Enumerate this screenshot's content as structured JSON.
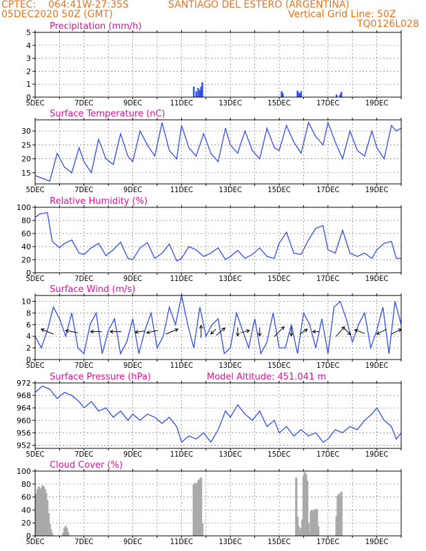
{
  "header": {
    "line1_left": "CPTEC:",
    "line1_coords": "064:41W-27:35S",
    "line1_station": "SANTIAGO DEL ESTERO (ARGENTINA)",
    "line2_left": "05DEC2020 50Z (GMT)",
    "line2_right": "Vertical Grid Line: 50Z",
    "line3_right": "TQ0126L028"
  },
  "colors": {
    "header": "#e8731c",
    "title": "#e0109a",
    "line": "#2f4cf0",
    "bar": "#2f4cf0",
    "cloud": "#a9a9a9"
  },
  "chart_data": [
    {
      "type": "bar",
      "title": "Precipitation (mm/h)",
      "ylim": [
        0,
        5
      ],
      "yticks": [
        0,
        1,
        2,
        3,
        4,
        5
      ],
      "xticks": [
        "5DEC",
        "7DEC",
        "9DEC",
        "11DEC",
        "13DEC",
        "15DEC",
        "17DEC",
        "19DEC"
      ],
      "x_day_range": [
        5,
        20
      ],
      "x": [
        5.5,
        11.5,
        11.6,
        11.68,
        11.75,
        11.8,
        11.85,
        15.1,
        15.15,
        15.75,
        15.8,
        15.85,
        15.9,
        17.35,
        17.5,
        17.55
      ],
      "values": [
        0.02,
        0.8,
        0.45,
        0.7,
        0.55,
        0.8,
        1.15,
        0.45,
        0.3,
        0.5,
        0.35,
        0.3,
        0.45,
        0.2,
        0.2,
        0.4
      ]
    },
    {
      "type": "line",
      "title": "Surface Temperature (nC)",
      "ylim": [
        11,
        34
      ],
      "yticks": [
        15,
        20,
        25,
        30
      ],
      "xticks": [
        "5DEC",
        "7DEC",
        "9DEC",
        "11DEC",
        "13DEC",
        "15DEC",
        "17DEC",
        "19DEC"
      ],
      "x_day_range": [
        5,
        20
      ],
      "x": [
        5.0,
        5.3,
        5.6,
        5.9,
        6.2,
        6.5,
        6.8,
        7.0,
        7.3,
        7.6,
        7.9,
        8.2,
        8.5,
        8.8,
        9.0,
        9.3,
        9.6,
        9.9,
        10.2,
        10.5,
        10.8,
        11.0,
        11.3,
        11.6,
        11.9,
        12.2,
        12.5,
        12.8,
        13.0,
        13.3,
        13.6,
        13.9,
        14.2,
        14.5,
        14.8,
        15.0,
        15.3,
        15.6,
        15.9,
        16.2,
        16.5,
        16.8,
        17.0,
        17.3,
        17.6,
        17.9,
        18.2,
        18.5,
        18.8,
        19.0,
        19.3,
        19.6,
        19.8,
        20.0
      ],
      "values": [
        14,
        13,
        12,
        22,
        17,
        15,
        24,
        19,
        15,
        27,
        20,
        18,
        29,
        21,
        19,
        30,
        25,
        21,
        33,
        23,
        20,
        32,
        24,
        21,
        29,
        22,
        19,
        31,
        25,
        22,
        30,
        23,
        20,
        31,
        24,
        23,
        32,
        26,
        22,
        33,
        28,
        25,
        33,
        26,
        20,
        30,
        23,
        21,
        30,
        24,
        20,
        32,
        30,
        31
      ]
    },
    {
      "type": "line",
      "title": "Relative Humidity (%)",
      "ylim": [
        0,
        100
      ],
      "yticks": [
        0,
        20,
        40,
        60,
        80,
        100
      ],
      "xticks": [
        "5DEC",
        "7DEC",
        "9DEC",
        "11DEC",
        "13DEC",
        "15DEC",
        "17DEC",
        "19DEC"
      ],
      "x_day_range": [
        5,
        20
      ],
      "x": [
        5.0,
        5.2,
        5.5,
        5.7,
        6.0,
        6.2,
        6.5,
        6.8,
        7.0,
        7.3,
        7.6,
        7.9,
        8.2,
        8.5,
        8.8,
        9.0,
        9.3,
        9.6,
        9.9,
        10.2,
        10.5,
        10.8,
        11.0,
        11.3,
        11.6,
        11.9,
        12.2,
        12.5,
        12.8,
        13.0,
        13.3,
        13.6,
        13.9,
        14.2,
        14.5,
        14.8,
        15.0,
        15.3,
        15.6,
        15.9,
        16.2,
        16.5,
        16.8,
        17.0,
        17.3,
        17.6,
        17.9,
        18.2,
        18.5,
        18.8,
        19.0,
        19.3,
        19.6,
        19.8,
        20.0
      ],
      "values": [
        85,
        90,
        92,
        48,
        38,
        45,
        50,
        30,
        28,
        38,
        45,
        26,
        35,
        47,
        22,
        20,
        38,
        46,
        22,
        30,
        44,
        18,
        22,
        40,
        35,
        25,
        30,
        38,
        20,
        25,
        34,
        22,
        28,
        38,
        25,
        22,
        45,
        62,
        30,
        28,
        50,
        68,
        72,
        35,
        30,
        65,
        30,
        25,
        30,
        22,
        35,
        45,
        48,
        22,
        22
      ]
    },
    {
      "type": "line",
      "title": "Surface Wind (m/s)",
      "ylim": [
        0,
        11
      ],
      "yticks": [
        0,
        2,
        4,
        6,
        8,
        10
      ],
      "xticks": [
        "5DEC",
        "7DEC",
        "9DEC",
        "11DEC",
        "13DEC",
        "15DEC",
        "17DEC",
        "19DEC"
      ],
      "x_day_range": [
        5,
        20
      ],
      "x": [
        5.0,
        5.25,
        5.5,
        5.75,
        6.0,
        6.25,
        6.5,
        6.75,
        7.0,
        7.25,
        7.5,
        7.75,
        8.0,
        8.25,
        8.5,
        8.75,
        9.0,
        9.25,
        9.5,
        9.75,
        10.0,
        10.25,
        10.5,
        10.75,
        11.0,
        11.25,
        11.5,
        11.75,
        12.0,
        12.25,
        12.5,
        12.75,
        13.0,
        13.25,
        13.5,
        13.75,
        14.0,
        14.25,
        14.5,
        14.75,
        15.0,
        15.25,
        15.5,
        15.75,
        16.0,
        16.25,
        16.5,
        16.75,
        17.0,
        17.25,
        17.5,
        17.75,
        18.0,
        18.25,
        18.5,
        18.75,
        19.0,
        19.25,
        19.5,
        19.75,
        20.0
      ],
      "values": [
        4,
        2,
        5,
        9,
        7,
        4,
        8,
        2,
        1,
        6,
        8,
        1,
        5,
        7,
        1,
        3,
        7,
        1,
        5,
        8,
        2,
        4,
        9,
        6,
        11,
        6,
        2,
        9,
        4,
        6,
        7,
        1,
        2,
        8,
        5,
        2,
        7,
        1,
        3,
        8,
        2,
        2,
        6,
        1,
        8,
        6,
        2,
        7,
        1,
        9,
        10,
        7,
        3,
        6,
        8,
        2,
        5,
        9,
        1,
        10,
        6
      ],
      "arrows_unit": "direction vectors",
      "arrows": [
        {
          "x": 5.5,
          "u": -1,
          "v": 0.4
        },
        {
          "x": 6.5,
          "u": -1,
          "v": 0.2
        },
        {
          "x": 7.5,
          "u": -0.9,
          "v": 0.0
        },
        {
          "x": 8.3,
          "u": -0.9,
          "v": 0.0
        },
        {
          "x": 9.3,
          "u": -0.8,
          "v": -0.1
        },
        {
          "x": 9.8,
          "u": -0.9,
          "v": -0.2
        },
        {
          "x": 10.6,
          "u": 1,
          "v": 0.4
        },
        {
          "x": 11.8,
          "u": 0.0,
          "v": 1.0
        },
        {
          "x": 12.3,
          "u": -0.4,
          "v": -0.4
        },
        {
          "x": 12.6,
          "u": 0.7,
          "v": 0.6
        },
        {
          "x": 13.3,
          "u": 0.0,
          "v": -0.7
        },
        {
          "x": 13.6,
          "u": 0.7,
          "v": 0.2
        },
        {
          "x": 14.2,
          "u": 0.0,
          "v": -0.7
        },
        {
          "x": 15.0,
          "u": 0.8,
          "v": 0.8
        },
        {
          "x": 15.5,
          "u": 0.0,
          "v": -0.7
        },
        {
          "x": 16.0,
          "u": 0.6,
          "v": 0.4
        },
        {
          "x": 16.5,
          "u": -0.5,
          "v": 0.0
        },
        {
          "x": 17.5,
          "u": 0.7,
          "v": 0.8
        },
        {
          "x": 17.8,
          "u": 0.5,
          "v": -0.5
        },
        {
          "x": 18.3,
          "u": -0.8,
          "v": 0.3
        },
        {
          "x": 19.2,
          "u": -0.8,
          "v": -0.4
        },
        {
          "x": 19.8,
          "u": 0.8,
          "v": 0.4
        }
      ]
    },
    {
      "type": "line",
      "title": "Surface Pressure (hPa)",
      "annotation": "Model Altitude: 451.041 m",
      "ylim": [
        951,
        972
      ],
      "yticks": [
        952,
        956,
        960,
        964,
        968,
        972
      ],
      "xticks": [
        "5DEC",
        "7DEC",
        "9DEC",
        "11DEC",
        "13DEC",
        "15DEC",
        "17DEC",
        "19DEC"
      ],
      "x_day_range": [
        5,
        20
      ],
      "x": [
        5.0,
        5.3,
        5.6,
        5.9,
        6.2,
        6.5,
        6.8,
        7.0,
        7.3,
        7.6,
        7.9,
        8.2,
        8.5,
        8.8,
        9.0,
        9.3,
        9.6,
        9.9,
        10.2,
        10.5,
        10.8,
        11.0,
        11.3,
        11.6,
        11.9,
        12.2,
        12.5,
        12.8,
        13.0,
        13.3,
        13.6,
        13.9,
        14.2,
        14.5,
        14.8,
        15.0,
        15.3,
        15.6,
        15.9,
        16.2,
        16.5,
        16.8,
        17.0,
        17.3,
        17.6,
        17.9,
        18.2,
        18.5,
        18.8,
        19.0,
        19.3,
        19.6,
        19.8,
        20.0
      ],
      "values": [
        969,
        971,
        970,
        967,
        969,
        968,
        966,
        964,
        966,
        963,
        964,
        961,
        963,
        960,
        962,
        960,
        962,
        961,
        959,
        961,
        958,
        953,
        955,
        954,
        956,
        953,
        957,
        963,
        961,
        965,
        962,
        960,
        963,
        958,
        960,
        956,
        958,
        955,
        957,
        955,
        956,
        953,
        954,
        957,
        956,
        958,
        957,
        960,
        962,
        964,
        960,
        958,
        954,
        956
      ]
    },
    {
      "type": "bar",
      "title": "Cloud Cover (%)",
      "ylim": [
        0,
        100
      ],
      "yticks": [
        0,
        20,
        40,
        60,
        80,
        100
      ],
      "xticks": [
        "5DEC",
        "7DEC",
        "9DEC",
        "11DEC",
        "13DEC",
        "15DEC",
        "17DEC",
        "19DEC"
      ],
      "x_day_range": [
        5,
        20
      ],
      "x": [
        5.0,
        5.05,
        5.1,
        5.15,
        5.2,
        5.25,
        5.3,
        5.35,
        5.4,
        5.45,
        5.5,
        5.55,
        5.6,
        5.65,
        5.7,
        6.15,
        6.2,
        6.25,
        6.3,
        6.35,
        11.5,
        11.55,
        11.6,
        11.65,
        11.7,
        11.75,
        11.8,
        11.85,
        15.7,
        15.75,
        15.8,
        15.85,
        15.9,
        15.95,
        16.0,
        16.05,
        16.1,
        16.15,
        16.2,
        16.25,
        16.3,
        16.35,
        16.4,
        16.45,
        16.5,
        16.55,
        16.6,
        17.35,
        17.4,
        17.45,
        17.5,
        17.55
      ],
      "values": [
        45,
        65,
        72,
        76,
        70,
        74,
        78,
        76,
        72,
        66,
        55,
        35,
        18,
        10,
        4,
        5,
        12,
        15,
        12,
        6,
        80,
        82,
        78,
        82,
        86,
        88,
        90,
        20,
        90,
        30,
        15,
        5,
        12,
        25,
        92,
        98,
        95,
        85,
        20,
        5,
        38,
        40,
        38,
        40,
        42,
        40,
        15,
        30,
        62,
        65,
        60,
        68
      ]
    }
  ]
}
